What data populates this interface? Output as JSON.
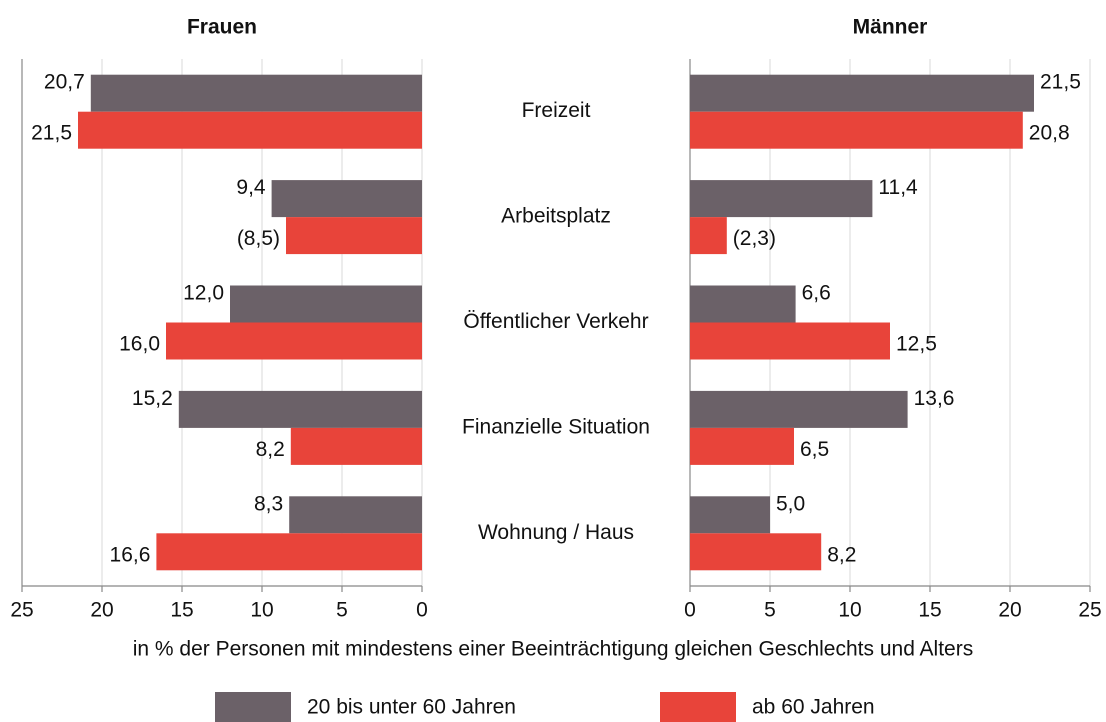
{
  "chart_data": [
    {
      "type": "barh",
      "title": "Frauen",
      "categories": [
        "Freizeit",
        "Arbeitsplatz",
        "Öffentlicher Verkehr",
        "Finanzielle Situation",
        "Wohnung / Haus"
      ],
      "xlabel": "in % der Personen mit mindestens einer Beeinträchtigung gleichen Geschlechts und Alters",
      "xlim": [
        25,
        0
      ],
      "xticks": [
        25,
        20,
        15,
        10,
        5,
        0
      ],
      "grid": true,
      "series": [
        {
          "name": "20 bis unter 60 Jahren",
          "color": "#6b6168",
          "values": [
            20.7,
            9.4,
            12.0,
            15.2,
            8.3
          ],
          "value_labels": [
            "20,7",
            "9,4",
            "12,0",
            "15,2",
            "8,3"
          ]
        },
        {
          "name": "ab 60 Jahren",
          "color": "#e8443a",
          "values": [
            21.5,
            8.5,
            16.0,
            8.2,
            16.6
          ],
          "value_labels": [
            "21,5",
            "(8,5)",
            "16,0",
            "8,2",
            "16,6"
          ]
        }
      ]
    },
    {
      "type": "barh",
      "title": "Männer",
      "xlim": [
        0,
        25
      ],
      "xticks": [
        0,
        5,
        10,
        15,
        20,
        25
      ],
      "grid": true,
      "series": [
        {
          "color": "#6b6168",
          "values": [
            21.5,
            11.4,
            6.6,
            13.6,
            5.0
          ],
          "value_labels": [
            "21,5",
            "11,4",
            "6,6",
            "13,6",
            "5,0"
          ]
        },
        {
          "color": "#e8443a",
          "values": [
            20.8,
            2.3,
            12.5,
            6.5,
            8.2
          ],
          "value_labels": [
            "20,8",
            "(2,3)",
            "12,5",
            "6,5",
            "8,2"
          ]
        }
      ]
    }
  ]
}
